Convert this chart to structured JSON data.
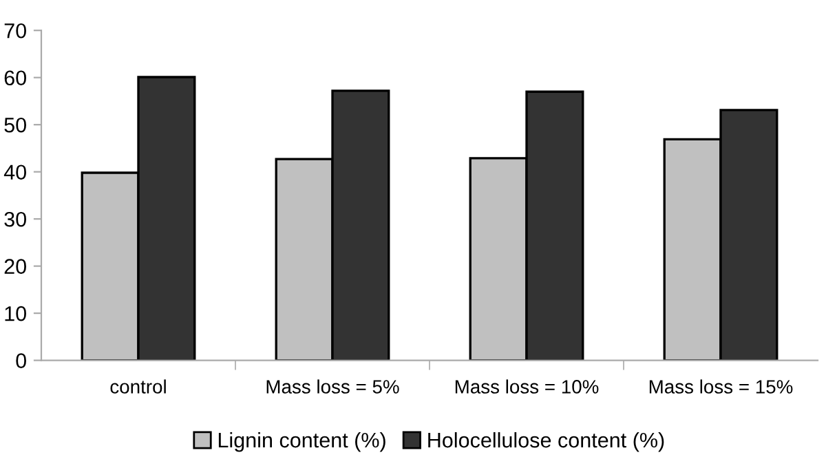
{
  "chart_data": {
    "type": "bar",
    "categories": [
      "control",
      "Mass loss = 5%",
      "Mass loss = 10%",
      "Mass loss = 15%"
    ],
    "series": [
      {
        "name": "Lignin content (%)",
        "color": "#c0c0c0",
        "values": [
          39.8,
          42.7,
          42.9,
          46.9
        ]
      },
      {
        "name": "Holocellulose content (%)",
        "color": "#333333",
        "values": [
          60.1,
          57.2,
          57.0,
          53.1
        ]
      }
    ],
    "ylim": [
      0,
      70
    ],
    "yticks": [
      0,
      10,
      20,
      30,
      40,
      50,
      60,
      70
    ],
    "grid": false,
    "legend": "bottom"
  }
}
